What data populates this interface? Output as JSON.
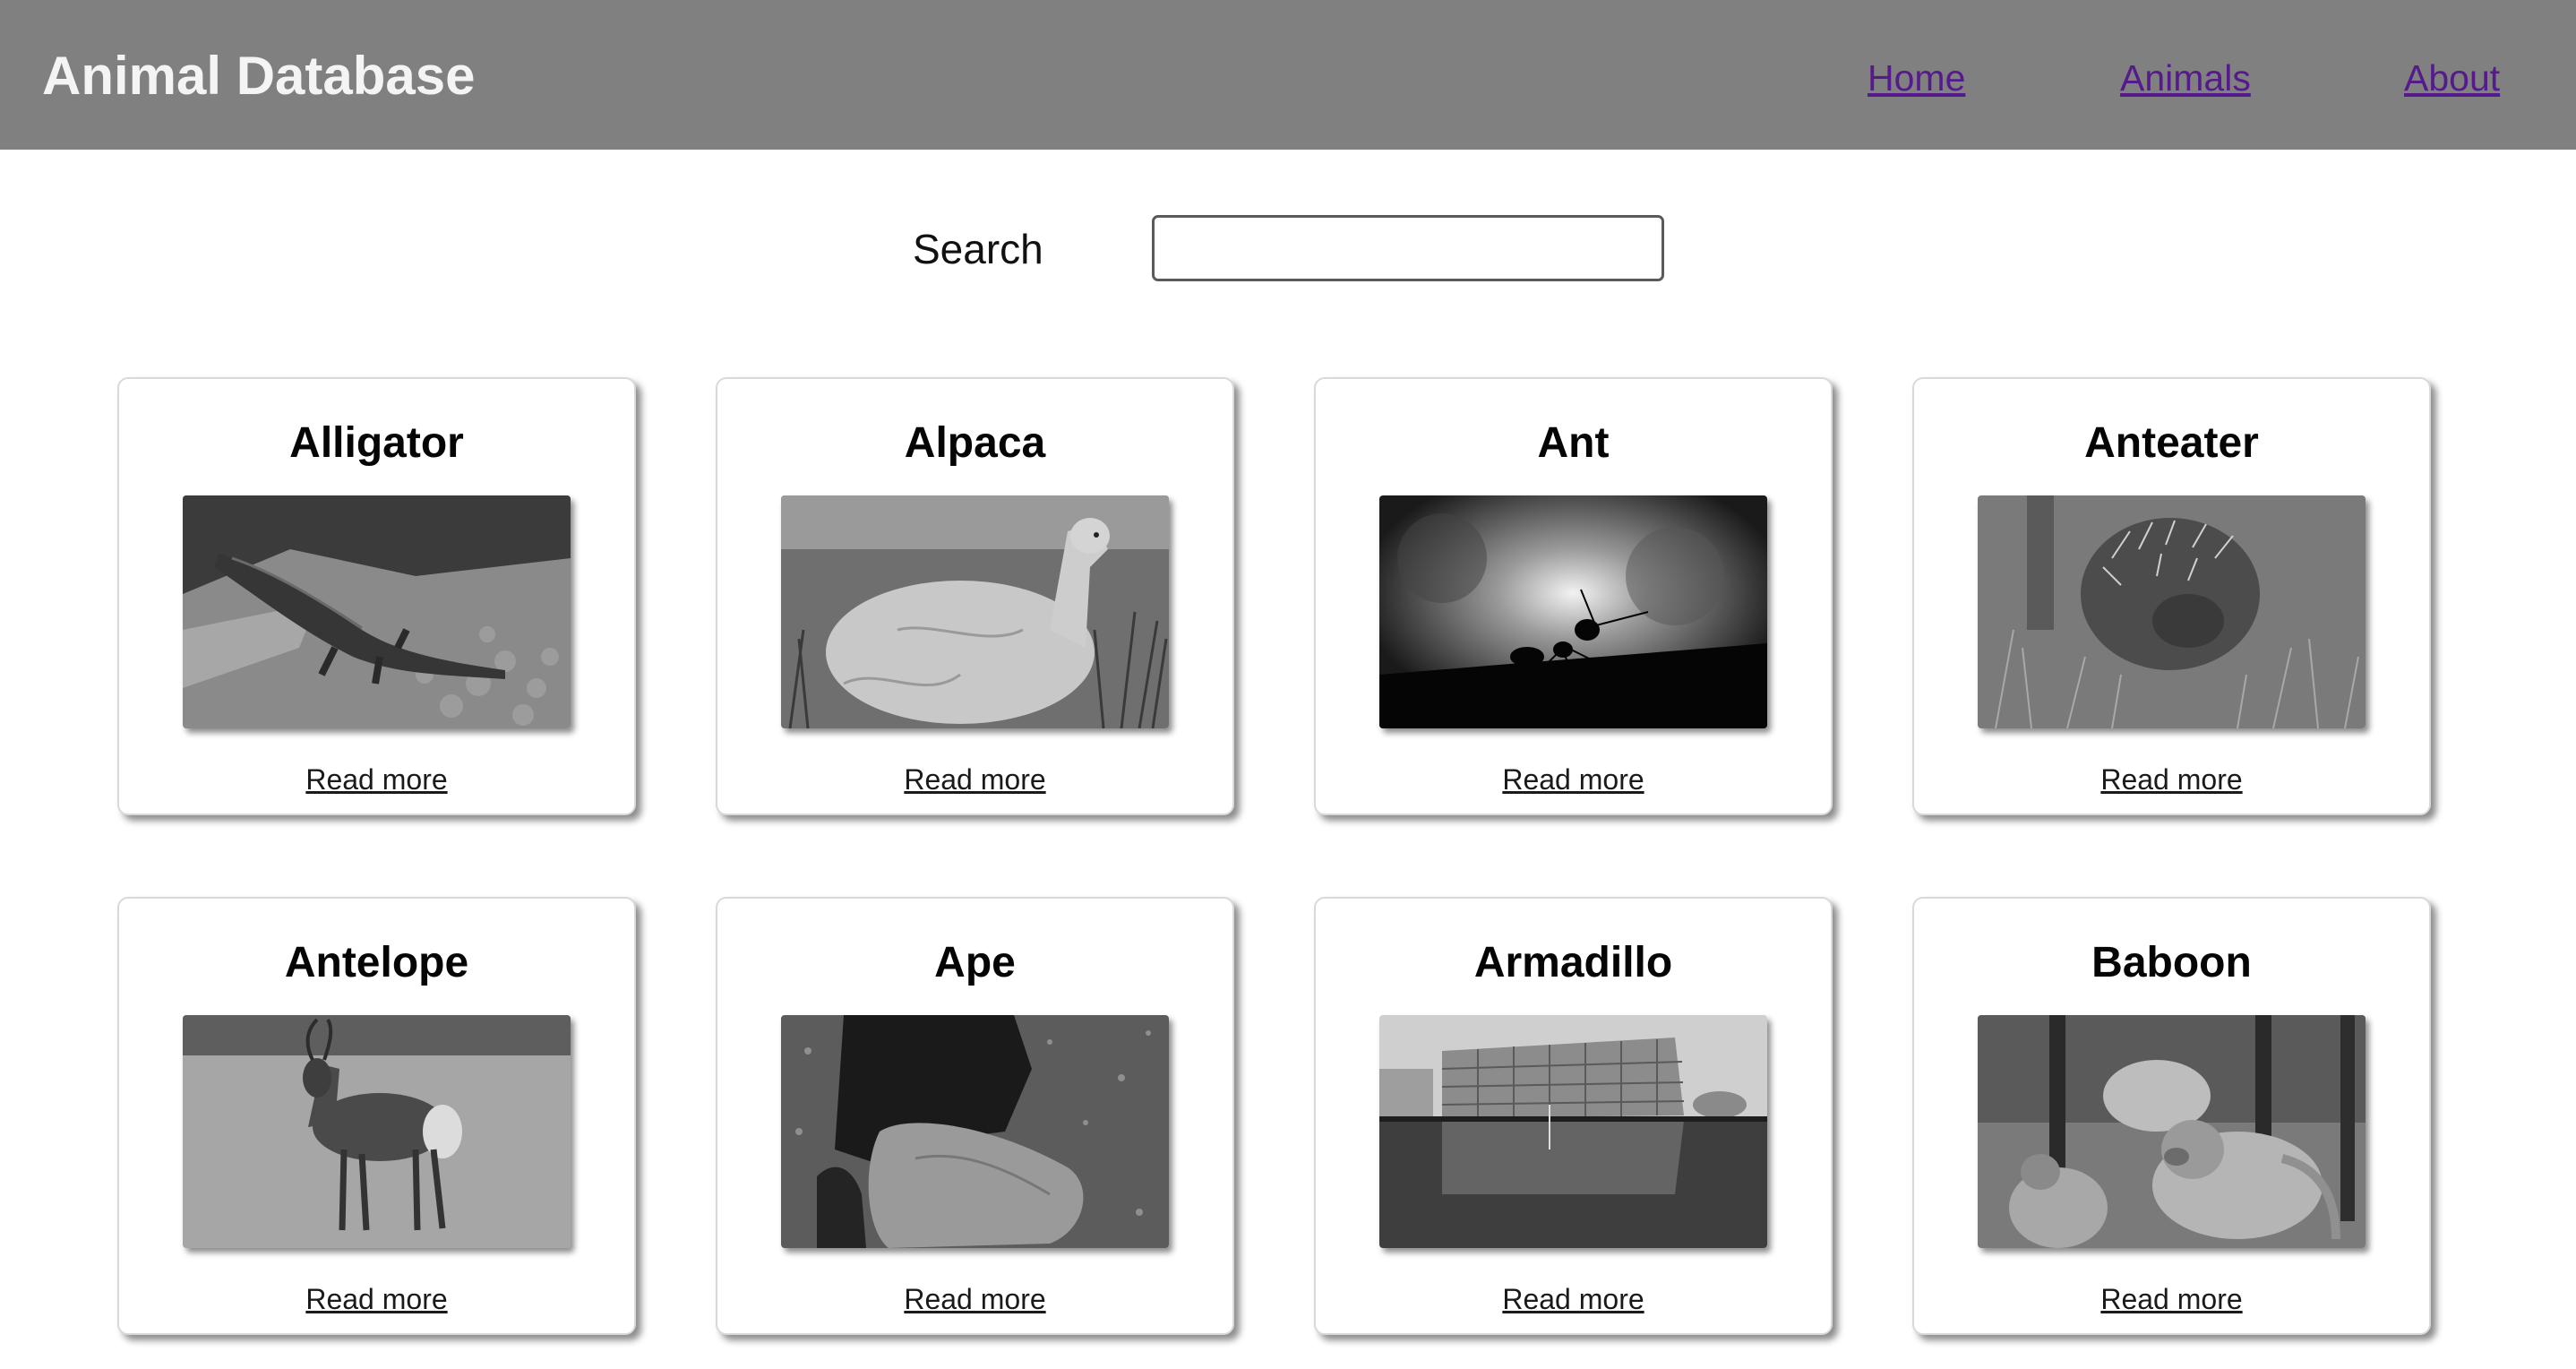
{
  "header": {
    "title": "Animal Database",
    "background_color": "#808080",
    "nav": [
      {
        "label": "Home"
      },
      {
        "label": "Animals"
      },
      {
        "label": "About"
      }
    ],
    "link_color": "#551a8b"
  },
  "search": {
    "label": "Search",
    "value": ""
  },
  "cards": [
    {
      "name": "Alligator",
      "link_label": "Read more",
      "image": "alligator-photo"
    },
    {
      "name": "Alpaca",
      "link_label": "Read more",
      "image": "alpaca-photo"
    },
    {
      "name": "Ant",
      "link_label": "Read more",
      "image": "ant-silhouette-photo"
    },
    {
      "name": "Anteater",
      "link_label": "Read more",
      "image": "echidna-photo"
    },
    {
      "name": "Antelope",
      "link_label": "Read more",
      "image": "waterbuck-photo"
    },
    {
      "name": "Ape",
      "link_label": "Read more",
      "image": "chimpanzee-photo"
    },
    {
      "name": "Armadillo",
      "link_label": "Read more",
      "image": "building-reflection-photo"
    },
    {
      "name": "Baboon",
      "link_label": "Read more",
      "image": "baboons-photo"
    }
  ]
}
